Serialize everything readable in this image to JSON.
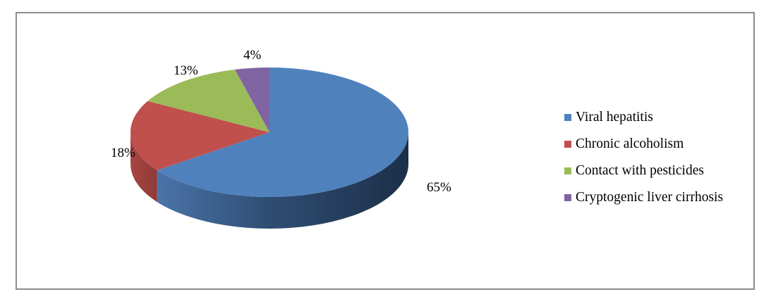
{
  "chart_data": {
    "type": "pie",
    "style": "3d",
    "title": "",
    "categories": [
      "Viral hepatitis",
      "Chronic alcoholism",
      "Contact with pesticides",
      "Cryptogenic liver cirrhosis"
    ],
    "values": [
      65,
      18,
      13,
      4
    ],
    "data_labels": [
      "65%",
      "18%",
      "13%",
      "4%"
    ],
    "colors": [
      "#4f81bd",
      "#c0504d",
      "#9bbb59",
      "#8064a2"
    ],
    "legend_position": "right"
  }
}
